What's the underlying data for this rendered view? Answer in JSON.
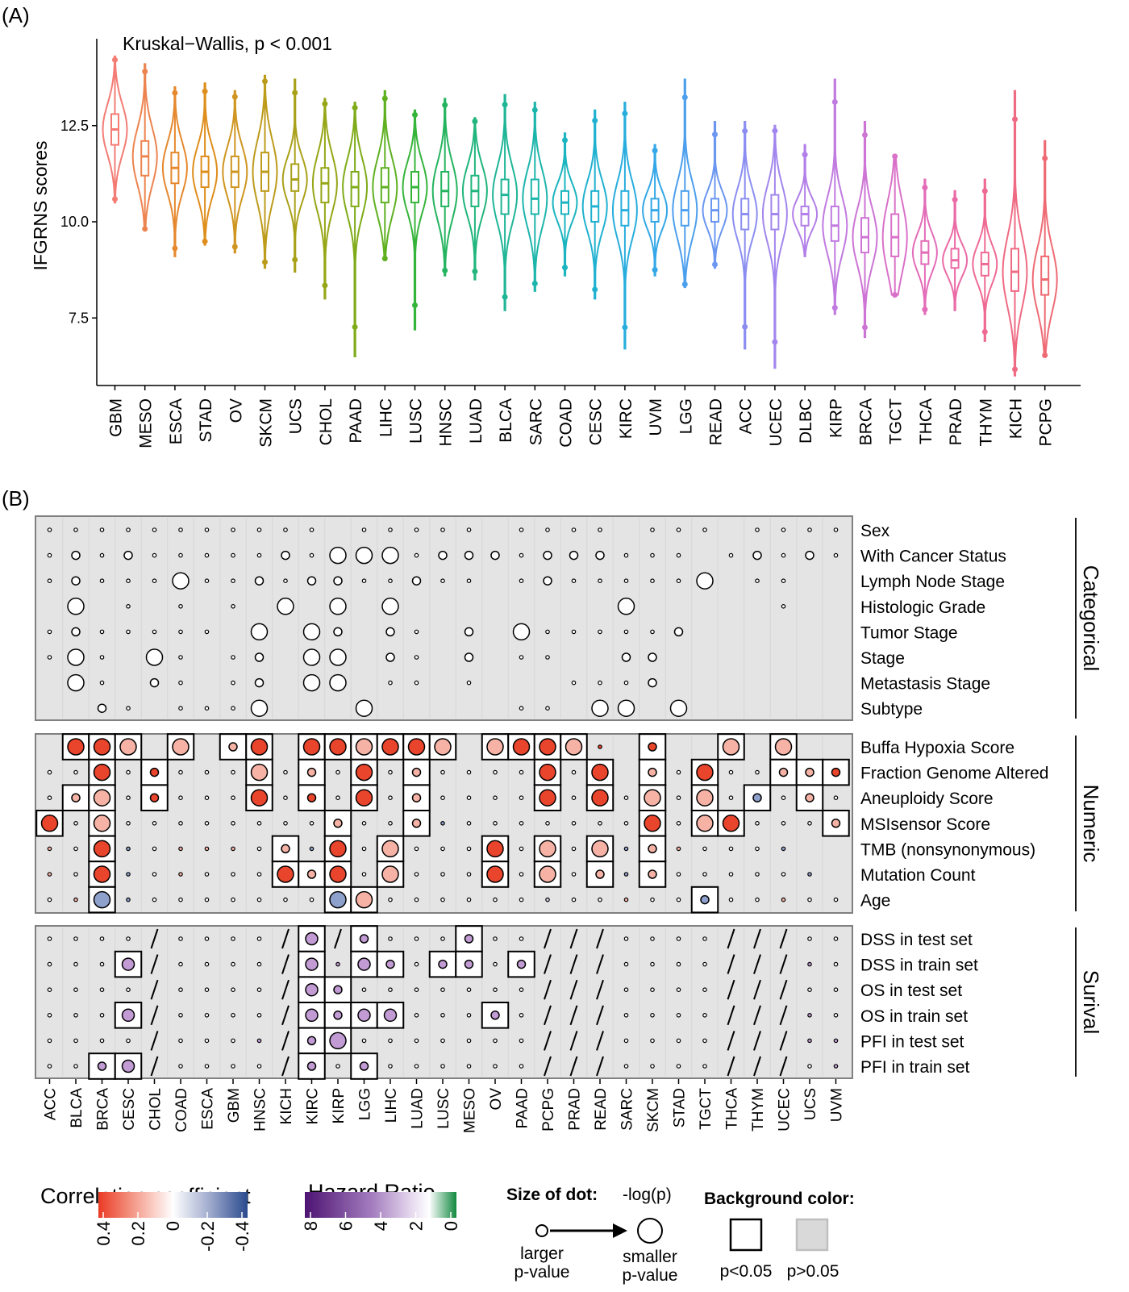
{
  "panel_a_label": "(A)",
  "panel_b_label": "(B)",
  "chart_data": [
    {
      "type": "violin",
      "title": "",
      "annotation": "Kruskal−Wallis, p < 0.001",
      "ylabel": "IFGRNS scores",
      "xlabel": "",
      "ylim": [
        5.9,
        14.6
      ],
      "yticks": [
        "7.5",
        "10.0",
        "12.5"
      ],
      "ytick_values": [
        7.5,
        10.0,
        12.5
      ],
      "categories": [
        "GBM",
        "MESO",
        "ESCA",
        "STAD",
        "OV",
        "SKCM",
        "UCS",
        "CHOL",
        "PAAD",
        "LIHC",
        "LUSC",
        "HNSC",
        "LUAD",
        "BLCA",
        "SARC",
        "COAD",
        "CESC",
        "KIRC",
        "UVM",
        "LGG",
        "READ",
        "ACC",
        "UCEC",
        "DLBC",
        "KIRP",
        "BRCA",
        "TGCT",
        "THCA",
        "PRAD",
        "THYM",
        "KICH",
        "PCPG"
      ],
      "medians": [
        12.4,
        11.7,
        11.4,
        11.3,
        11.3,
        11.3,
        11.1,
        11.0,
        10.9,
        10.9,
        10.9,
        10.8,
        10.8,
        10.7,
        10.6,
        10.5,
        10.4,
        10.3,
        10.3,
        10.3,
        10.3,
        10.2,
        10.2,
        10.2,
        9.9,
        9.6,
        9.6,
        9.2,
        9.0,
        8.9,
        8.7,
        8.5
      ],
      "q1": [
        12.0,
        11.2,
        11.0,
        10.9,
        10.9,
        10.8,
        10.8,
        10.5,
        10.4,
        10.5,
        10.5,
        10.4,
        10.4,
        10.2,
        10.2,
        10.2,
        10.0,
        9.9,
        10.0,
        9.9,
        10.0,
        9.8,
        9.8,
        9.9,
        9.5,
        9.2,
        9.1,
        8.9,
        8.8,
        8.6,
        8.2,
        8.1
      ],
      "q3": [
        12.8,
        12.1,
        11.8,
        11.7,
        11.7,
        11.8,
        11.5,
        11.4,
        11.3,
        11.4,
        11.3,
        11.3,
        11.2,
        11.1,
        11.1,
        10.8,
        10.8,
        10.8,
        10.6,
        10.8,
        10.6,
        10.6,
        10.7,
        10.4,
        10.4,
        10.1,
        10.2,
        9.5,
        9.3,
        9.2,
        9.3,
        9.1
      ],
      "mins": [
        10.5,
        9.8,
        9.1,
        9.4,
        9.2,
        8.8,
        8.7,
        8.0,
        6.5,
        9.0,
        7.2,
        8.6,
        8.5,
        7.7,
        8.2,
        8.6,
        8.0,
        6.7,
        8.6,
        8.3,
        8.8,
        6.7,
        6.2,
        9.1,
        7.6,
        7.0,
        8.1,
        7.6,
        7.7,
        6.9,
        6.0,
        6.5
      ],
      "maxs": [
        14.3,
        14.1,
        13.5,
        13.6,
        13.4,
        13.8,
        13.7,
        13.2,
        13.1,
        13.4,
        12.9,
        13.2,
        12.7,
        13.3,
        13.1,
        12.3,
        12.9,
        13.1,
        12.0,
        13.7,
        12.6,
        12.6,
        12.5,
        12.0,
        13.7,
        12.6,
        11.7,
        11.1,
        10.8,
        11.1,
        13.4,
        12.1
      ],
      "colors": [
        "#f37c74",
        "#ec8450",
        "#e5882e",
        "#de8e1c",
        "#cf9520",
        "#bd9b1b",
        "#aaa11a",
        "#96a616",
        "#7fab18",
        "#5eb021",
        "#35b43a",
        "#24b45f",
        "#20b57d",
        "#1fb596",
        "#1db5ab",
        "#1bb4bf",
        "#20b1d0",
        "#28addd",
        "#33a7e7",
        "#4c9fed",
        "#6b97f0",
        "#8b8ef0",
        "#a286ed",
        "#b27fe8",
        "#c07ae0",
        "#cd74d5",
        "#d971c8",
        "#e36cb8",
        "#ea6aa6",
        "#ee6a93",
        "#ef6a83",
        "#ee6b74"
      ]
    },
    {
      "type": "dotmatrix",
      "cancers": [
        "ACC",
        "BLCA",
        "BRCA",
        "CESC",
        "CHOL",
        "COAD",
        "ESCA",
        "GBM",
        "HNSC",
        "KICH",
        "KIRC",
        "KIRP",
        "LGG",
        "LIHC",
        "LUAD",
        "LUSC",
        "MESO",
        "OV",
        "PAAD",
        "PCPG",
        "PRAD",
        "READ",
        "SARC",
        "SKCM",
        "STAD",
        "TGCT",
        "THCA",
        "THYM",
        "UCEC",
        "UCS",
        "UVM"
      ],
      "groups": [
        {
          "name": "Categorical",
          "rows": [
            "Sex",
            "With Cancer Status",
            "Lymph Node Stage",
            "Histologic Grade",
            "Tumor Stage",
            "Stage",
            "Metastasis Stage",
            "Subtype"
          ]
        },
        {
          "name": "Numeric",
          "rows": [
            "Buffa Hypoxia Score",
            "Fraction Genome Altered",
            "Aneuploidy Score",
            "MSIsensor Score",
            "TMB (nonsynonymous)",
            "Mutation Count",
            "Age"
          ]
        },
        {
          "name": "Surival",
          "rows": [
            "DSS in test set",
            "DSS in train set",
            "OS in test set",
            "OS in train set",
            "PFI in test set",
            "PFI in train set"
          ]
        }
      ],
      "categorical": [
        "s.s.s.s.s.s.s.s.s.s.SL.s..s.s.s.s.s..s.s.s.s..s.s.s..s.s.s.s..",
        ".s.Lm.s.Lm.s.s.s.s.s.Lm.s.LL.LL.LL.s.Lm.Lm.Lm.s.Lm.Lm.Lm.s.s.s..s.Lm.s.Lm.s.s",
        ".s.Lm.s.s.s.LL.s.s.Lm.s.Lm.Lm.s.s.Lm.s.s..s.Lm.s.s.s.s.s.LL..s.s",
        "..LL..s..s..s..LL..LL..LL.........LL......s...s..",
        ".s.Lm.Sm.s.s.s.s..LL..LL.Lm..Lm.s..Lm..LL.s.s.s.s.s.Lm......",
        ".s.LL.s..LL.s..s.Lm..LL.LL..Lm.s..Lm..s.s...Lm.Lm......",
        "..LL.s..Lm.s..s.Lm..LL.LL..s.s..s....s.s.s.Lm.....",
        "...Lm.Sm..Sm.Sm.Sm.LL....LL......s.Sm..LL.LL..LL.."
      ],
      "numeric": [
        "..rL.rL.pL..pL..pS.rL..rL.rL.pL.rL.rL.pL..pL.rL.rL.pL.rs..rS...pL..pL..",
        ".s.s.rL.s.rS.s.s.s.pL.s.pS.s.rL.s.pS.s.s.s.s.rL.s.rL..pS.s.rL.s.s.pS.pS.rS.rS",
        ".s.pS.pL.s.rS.s.s.s.rL.s.rS.s.rL.s.pS.s.s.s.s.rL.s.rL.s.pL.s.pL.s.bS.s.pS.s.rS",
        ".rL.s.pL.s.s.s.s.s.s.s.s.pS.s.s.pS.bs.s.s.s.s.s.s.s.rL.s.pL.rL.s.s.s.pS",
        ".ps.s.rL.bs.s.ps.ps.ps.s.pS.bs.rL.s.pL.s.s.s.rL.s.pL.s.pL.bs.pS.ps.s.s.s.bs",
        ".ps.s.rL.bs.s.ps.s.s.s.rL.pS.rL.s.pL.s.s.s.rL.s.pL.s.pS.bs.pS.s.s.s.s.s.bs",
        ".s.ps.bL.bs.s.s.s.s.s.s.s.bL.pL.s.s.s.s.s.s.gs.s.s.ps.s.s.bS.s.s.ps.s.s"
      ],
      "survival": [
        ".s.s.s.s./.s.s.s.s./.vM./.vS.s.s.s.vS.s.s./././.s.s.s.s./././.s.s",
        ".s.s.s.vM./.s.s.s.s./.vM.vs.vM.vS.s.vS.vS.s.vS./././.s.s.s.s./././.vs.s",
        ".s.s.s.s./.s.s.s.s./.vM.vS.s.s.s.s.s.s.s./././.s.s.s.s./././.s.s",
        ".s.s.s.vM./.s.s.s.s./.vM.vS.vM.vM.s.s.s.vS.s./././.s.s.s.s./././.vs.s",
        ".s.s.s.s./.s.s.s.vs./.vS.vL.s.s.s.s.s.s.s./././.s.s.s.s./././.vs.vs",
        ".s.s.vS.vM./.s.s.s.s./.vS.s.vS.s.s.s.s.s.s./././.s.s.s.s./././.s.vs"
      ],
      "legend": {
        "corr_title": "Correlation coefficient",
        "corr_ticks": [
          "0.4",
          "0.2",
          "0",
          "-0.2",
          "-0.4"
        ],
        "hr_title": "Hazard Ratio",
        "hr_ticks": [
          "8",
          "6",
          "4",
          "2",
          "0"
        ],
        "size_title": "Size of dot:",
        "size_sub": "-log(p)",
        "size_small_l1": "larger",
        "size_small_l2": "p-value",
        "size_big_l1": "smaller",
        "size_big_l2": "p-value",
        "bg_title": "Background color:",
        "bg_sig": "p<0.05",
        "bg_nonsig": "p>0.05"
      }
    }
  ]
}
